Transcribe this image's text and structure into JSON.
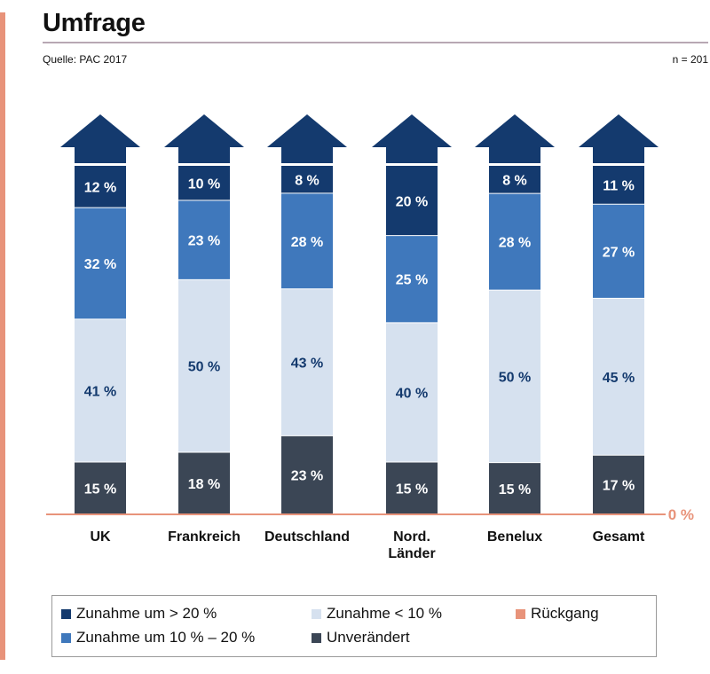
{
  "header": {
    "title": "Umfrage",
    "source": "Quelle: PAC 2017",
    "n": "n = 201"
  },
  "colors": {
    "zunahme_ueber_20": "#143a6e",
    "zunahme_10_20": "#3f78bc",
    "zunahme_unter_10": "#d6e1ef",
    "unveraendert": "#3b4655",
    "rueckgang": "#e8937a"
  },
  "chart_data": {
    "type": "bar",
    "stacked": true,
    "categories": [
      "UK",
      "Frankreich",
      "Deutschland",
      "Nord.\nLänder",
      "Benelux",
      "Gesamt"
    ],
    "series": [
      {
        "name": "Unverändert",
        "values": [
          15,
          18,
          23,
          15,
          15,
          17
        ],
        "labels": [
          "15 %",
          "18 %",
          "23 %",
          "15  %",
          "15 %",
          "17 %"
        ]
      },
      {
        "name": "Zunahme < 10 %",
        "values": [
          41,
          50,
          43,
          40,
          50,
          45
        ],
        "labels": [
          "41 %",
          "50 %",
          "43 %",
          "40 %",
          "50 %",
          "45 %"
        ]
      },
      {
        "name": "Zunahme um 10 % – 20 %",
        "values": [
          32,
          23,
          28,
          25,
          28,
          27
        ],
        "labels": [
          "32 %",
          "23 %",
          "28 %",
          "25 %",
          "28 %",
          "27 %"
        ]
      },
      {
        "name": "Zunahme um > 20 %",
        "values": [
          12,
          10,
          8,
          20,
          8,
          11
        ],
        "labels": [
          "12 %",
          "10 %",
          "8 %",
          "20 %",
          "8 %",
          "11 %"
        ]
      }
    ],
    "baseline_label": "0 %",
    "legend_position": "bottom",
    "grid": false
  },
  "legend": [
    {
      "key": "zunahme_ueber_20",
      "label": "Zunahme um > 20 %"
    },
    {
      "key": "zunahme_unter_10",
      "label": "Zunahme < 10 %"
    },
    {
      "key": "rueckgang",
      "label": "Rückgang"
    },
    {
      "key": "zunahme_10_20",
      "label": "Zunahme um 10 % – 20 %"
    },
    {
      "key": "unveraendert",
      "label": "Unverändert"
    }
  ]
}
